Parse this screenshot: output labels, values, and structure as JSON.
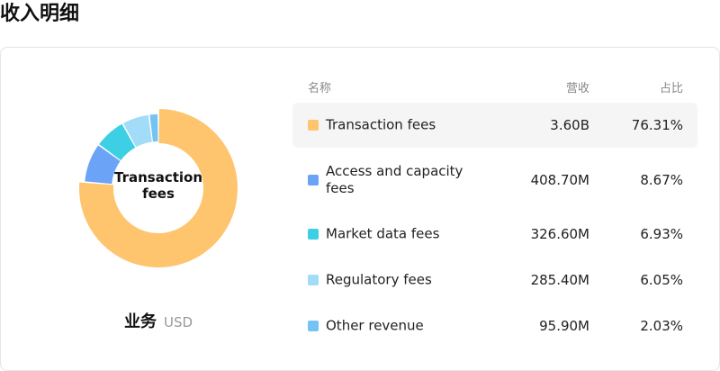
{
  "page": {
    "title": "收入明细"
  },
  "segment": {
    "name": "业务",
    "unit": "USD"
  },
  "donut": {
    "center_label": "Transaction fees"
  },
  "table": {
    "headers": {
      "name": "名称",
      "revenue": "营收",
      "share": "占比"
    },
    "selected_index": 0,
    "rows": [
      {
        "name": "Transaction fees",
        "revenue": "3.60B",
        "share": "76.31%",
        "color": "#ffc46e"
      },
      {
        "name": "Access and capacity fees",
        "revenue": "408.70M",
        "share": "8.67%",
        "color": "#6ba3f7"
      },
      {
        "name": "Market data fees",
        "revenue": "326.60M",
        "share": "6.93%",
        "color": "#3dd0e4"
      },
      {
        "name": "Regulatory fees",
        "revenue": "285.40M",
        "share": "6.05%",
        "color": "#a3dcf9"
      },
      {
        "name": "Other revenue",
        "revenue": "95.90M",
        "share": "2.03%",
        "color": "#74c3f5"
      }
    ]
  },
  "chart_data": {
    "type": "pie",
    "categories": [
      "Transaction fees",
      "Access and capacity fees",
      "Market data fees",
      "Regulatory fees",
      "Other revenue"
    ],
    "values": [
      76.31,
      8.67,
      6.93,
      6.05,
      2.03
    ],
    "colors": [
      "#ffc46e",
      "#6ba3f7",
      "#3dd0e4",
      "#a3dcf9",
      "#74c3f5"
    ],
    "highlighted": "Transaction fees"
  }
}
